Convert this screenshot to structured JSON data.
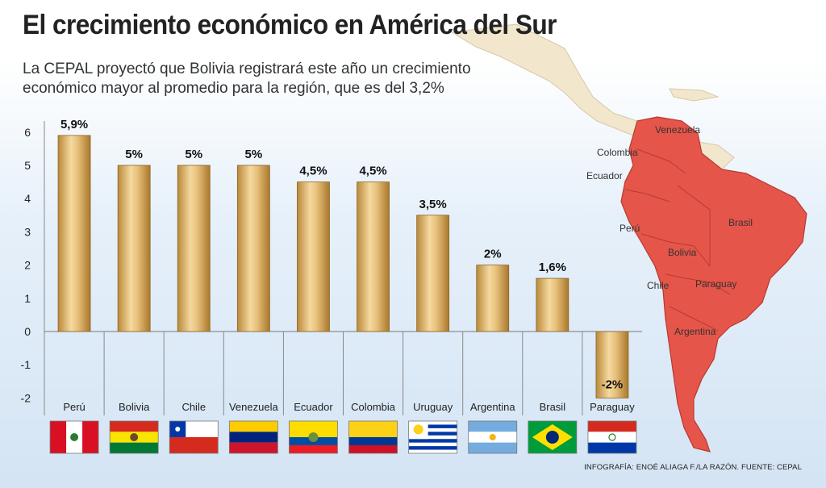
{
  "header": {
    "title": "El crecimiento económico en América del Sur",
    "subtitle": "La CEPAL proyectó que Bolivia registrará este año un crecimiento económico mayor al promedio para la región, que es del 3,2%"
  },
  "chart_data": {
    "type": "bar",
    "categories": [
      "Perú",
      "Bolivia",
      "Chile",
      "Venezuela",
      "Ecuador",
      "Colombia",
      "Uruguay",
      "Argentina",
      "Brasil",
      "Paraguay"
    ],
    "values": [
      5.9,
      5,
      5,
      5,
      4.5,
      4.5,
      3.5,
      2,
      1.6,
      -2
    ],
    "value_labels": [
      "5,9%",
      "5%",
      "5%",
      "5%",
      "4,5%",
      "4,5%",
      "3,5%",
      "2%",
      "1,6%",
      "-2%"
    ],
    "yticks": [
      6,
      5,
      4,
      3,
      2,
      1,
      0,
      -1,
      -2
    ],
    "ylim": [
      -2,
      6
    ],
    "xlabel": "",
    "ylabel": "",
    "colors": {
      "bar": "#e0b870",
      "bar_dark": "#b58a3c",
      "map_land": "#e5554a",
      "map_other": "#f2e6cc"
    }
  },
  "map": {
    "labels": [
      "Venezuela",
      "Colombia",
      "Ecuador",
      "Perú",
      "Brasil",
      "Bolivia",
      "Chile",
      "Paraguay",
      "Argentina"
    ]
  },
  "flags": [
    "peru-flag",
    "bolivia-flag",
    "chile-flag",
    "venezuela-flag",
    "ecuador-flag",
    "colombia-flag",
    "uruguay-flag",
    "argentina-flag",
    "brasil-flag",
    "paraguay-flag"
  ],
  "footer": {
    "credit": "INFOGRAFÍA: ENOÉ ALIAGA F./LA RAZÓN. FUENTE: CEPAL"
  }
}
